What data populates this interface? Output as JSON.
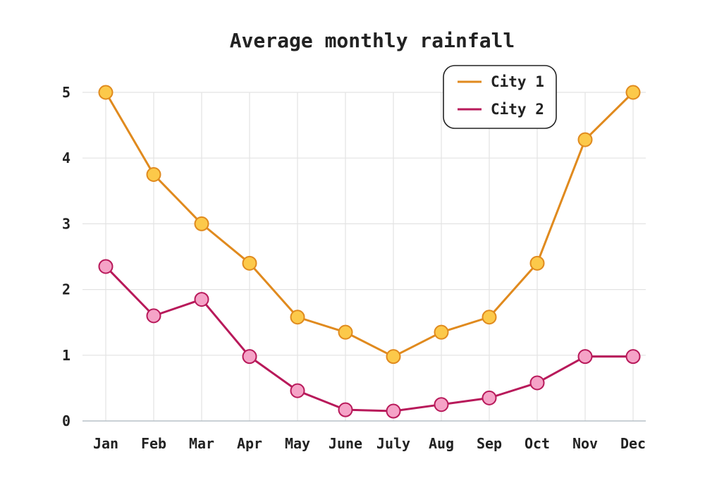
{
  "chart_data": {
    "type": "line",
    "title": "Average monthly rainfall",
    "xlabel": "",
    "ylabel": "",
    "categories": [
      "Jan",
      "Feb",
      "Mar",
      "Apr",
      "May",
      "June",
      "July",
      "Aug",
      "Sep",
      "Oct",
      "Nov",
      "Dec"
    ],
    "y_ticks": [
      0,
      1,
      2,
      3,
      4,
      5
    ],
    "ylim": [
      0,
      5
    ],
    "grid": true,
    "legend_position": "top-right",
    "series": [
      {
        "name": "City 1",
        "line_color": "#e08a1e",
        "marker_fill": "#fcc94a",
        "marker_stroke": "#e08a1e",
        "values": [
          5.0,
          3.75,
          3.0,
          2.4,
          1.58,
          1.35,
          0.98,
          1.35,
          1.58,
          2.4,
          4.28,
          5.0
        ]
      },
      {
        "name": "City 2",
        "line_color": "#b8195a",
        "marker_fill": "#f5a3c7",
        "marker_stroke": "#b8195a",
        "values": [
          2.35,
          1.6,
          1.85,
          0.98,
          0.46,
          0.17,
          0.15,
          0.25,
          0.35,
          0.58,
          0.98,
          0.98
        ]
      }
    ]
  }
}
